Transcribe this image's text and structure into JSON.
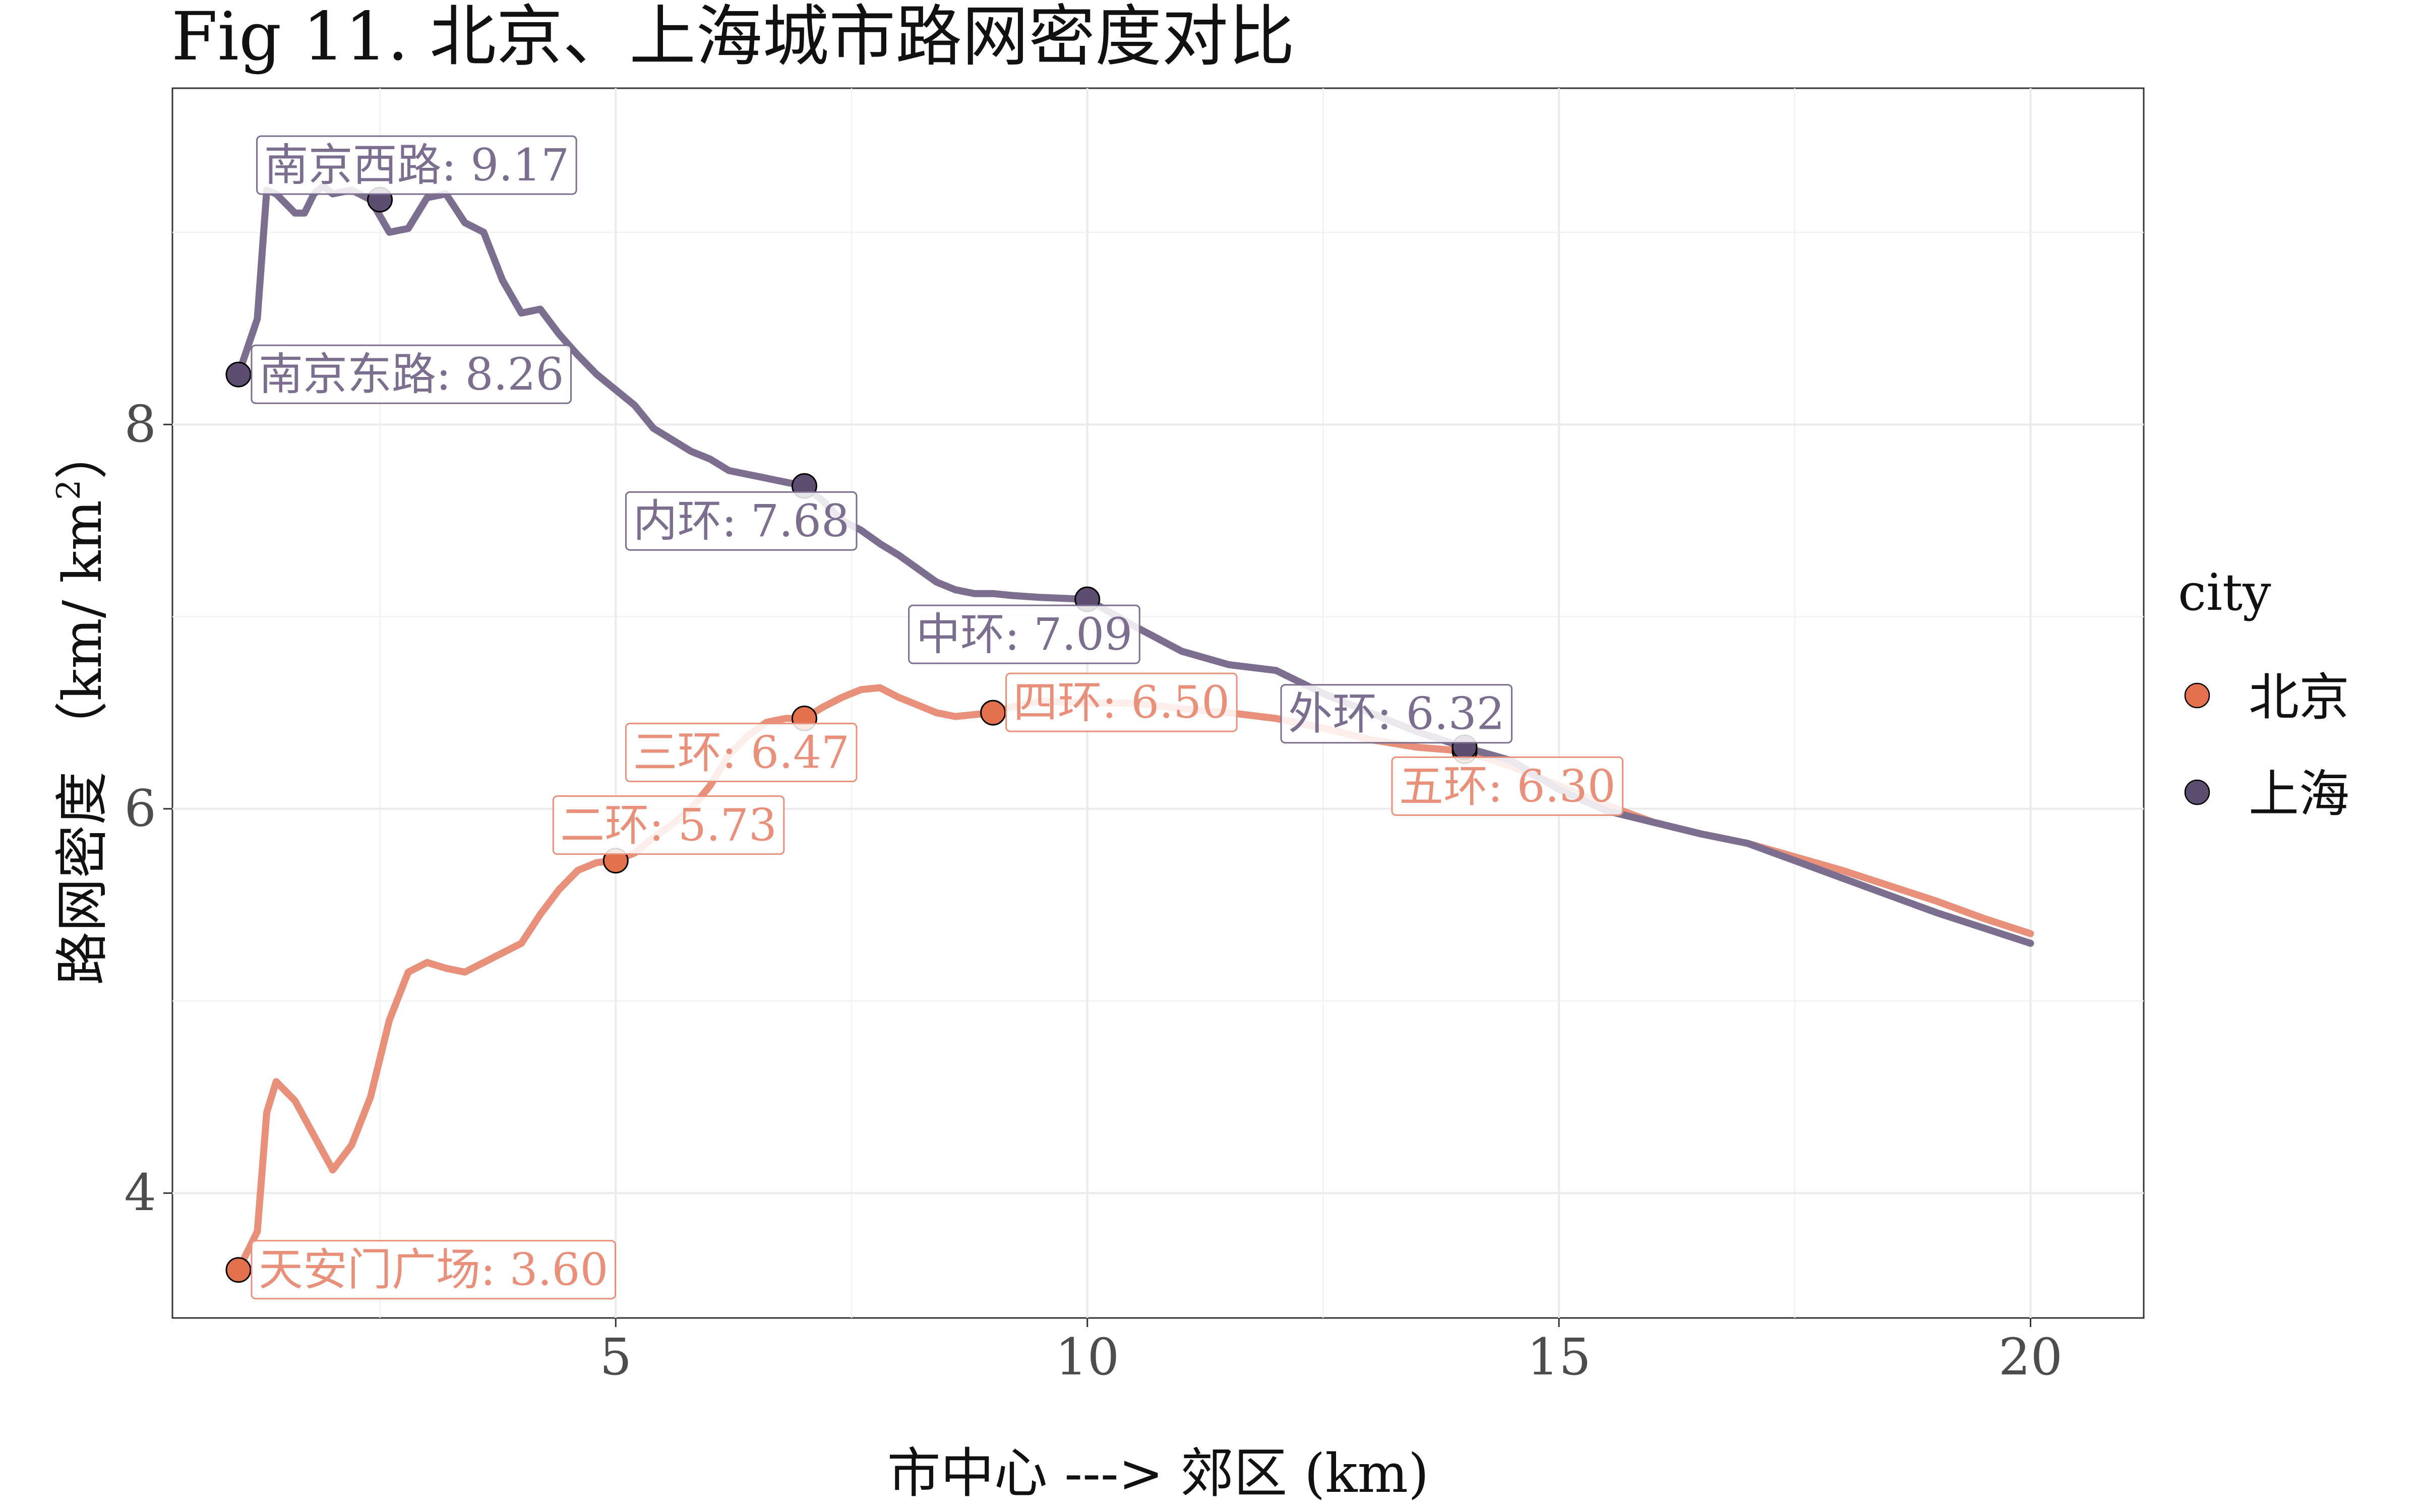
{
  "chart_data": {
    "type": "line",
    "title": "Fig 11. 北京、上海城市路网密度对比",
    "xlabel": "市中心 ---> 郊区 (km)",
    "ylabel": "路网密度 （km/ km",
    "ylabel_superscript": "2",
    "ylabel_close": "）",
    "xlim": [
      0.3,
      21.2
    ],
    "ylim": [
      3.35,
      9.75
    ],
    "x_ticks": [
      5,
      10,
      15,
      20
    ],
    "x_tick_labels": [
      "5",
      "10",
      "15",
      "20"
    ],
    "y_ticks": [
      4,
      6,
      8
    ],
    "y_tick_labels": [
      "4",
      "6",
      "8"
    ],
    "grid": true,
    "legend": {
      "title": "city",
      "position": "right",
      "entries": [
        {
          "label": "北京",
          "color": "#e3714d"
        },
        {
          "label": "上海",
          "color": "#5d4d70"
        }
      ]
    },
    "series": [
      {
        "name": "北京",
        "line_color": "#e8907a",
        "point_color": "#e3714d",
        "x": [
          1.0,
          1.2,
          1.3,
          1.4,
          1.6,
          1.8,
          2.0,
          2.2,
          2.4,
          2.6,
          2.8,
          3.0,
          3.2,
          3.4,
          3.6,
          3.8,
          4.0,
          4.2,
          4.4,
          4.6,
          4.8,
          5.0,
          5.2,
          5.4,
          5.6,
          5.8,
          6.0,
          6.2,
          6.4,
          6.6,
          6.8,
          7.0,
          7.2,
          7.4,
          7.6,
          7.8,
          8.0,
          8.2,
          8.4,
          8.6,
          8.8,
          9.0,
          9.2,
          9.5,
          10.0,
          10.5,
          11.0,
          11.5,
          12.0,
          12.5,
          13.0,
          13.5,
          14.0,
          14.5,
          15.0,
          15.5,
          16.0,
          16.5,
          17.0,
          17.5,
          18.0,
          18.5,
          19.0,
          19.5,
          20.0
        ],
        "y": [
          3.6,
          3.8,
          4.42,
          4.58,
          4.48,
          4.3,
          4.12,
          4.25,
          4.5,
          4.9,
          5.15,
          5.2,
          5.17,
          5.15,
          5.2,
          5.25,
          5.3,
          5.45,
          5.58,
          5.68,
          5.72,
          5.73,
          5.77,
          5.85,
          5.92,
          6.0,
          6.12,
          6.28,
          6.38,
          6.45,
          6.47,
          6.47,
          6.53,
          6.58,
          6.62,
          6.63,
          6.58,
          6.54,
          6.5,
          6.48,
          6.49,
          6.5,
          6.53,
          6.56,
          6.55,
          6.55,
          6.52,
          6.5,
          6.47,
          6.42,
          6.36,
          6.32,
          6.3,
          6.22,
          6.12,
          6.02,
          5.93,
          5.87,
          5.82,
          5.75,
          5.68,
          5.6,
          5.52,
          5.43,
          5.35
        ],
        "markers": [
          {
            "x": 1.0,
            "y": 3.6,
            "label": "天安门广场: 3.60"
          },
          {
            "x": 5.0,
            "y": 5.73,
            "label": "二环: 5.73"
          },
          {
            "x": 7.0,
            "y": 6.47,
            "label": "三环: 6.47"
          },
          {
            "x": 9.0,
            "y": 6.5,
            "label": "四环: 6.50"
          },
          {
            "x": 14.0,
            "y": 6.3,
            "label": "五环: 6.30"
          }
        ]
      },
      {
        "name": "上海",
        "line_color": "#7b6e8e",
        "point_color": "#5d4d70",
        "x": [
          1.0,
          1.2,
          1.3,
          1.4,
          1.6,
          1.7,
          1.8,
          1.9,
          2.0,
          2.2,
          2.4,
          2.6,
          2.8,
          3.0,
          3.2,
          3.4,
          3.6,
          3.8,
          4.0,
          4.2,
          4.4,
          4.6,
          4.8,
          5.0,
          5.2,
          5.4,
          5.6,
          5.8,
          6.0,
          6.2,
          6.4,
          6.6,
          6.8,
          7.0,
          7.2,
          7.4,
          7.6,
          7.8,
          8.0,
          8.2,
          8.4,
          8.6,
          8.8,
          9.0,
          9.2,
          9.5,
          10.0,
          10.5,
          11.0,
          11.5,
          12.0,
          12.5,
          13.0,
          13.5,
          14.0,
          14.5,
          15.0,
          15.5,
          16.0,
          16.5,
          17.0,
          17.5,
          18.0,
          18.5,
          19.0,
          19.5,
          20.0
        ],
        "y": [
          8.26,
          8.55,
          9.22,
          9.2,
          9.1,
          9.1,
          9.2,
          9.24,
          9.2,
          9.22,
          9.17,
          9.0,
          9.02,
          9.18,
          9.2,
          9.05,
          9.0,
          8.75,
          8.58,
          8.6,
          8.47,
          8.36,
          8.26,
          8.18,
          8.1,
          7.98,
          7.92,
          7.86,
          7.82,
          7.76,
          7.74,
          7.72,
          7.7,
          7.68,
          7.6,
          7.5,
          7.45,
          7.38,
          7.32,
          7.25,
          7.18,
          7.14,
          7.12,
          7.12,
          7.11,
          7.1,
          7.09,
          6.95,
          6.82,
          6.75,
          6.72,
          6.6,
          6.5,
          6.4,
          6.32,
          6.25,
          6.1,
          5.99,
          5.93,
          5.87,
          5.82,
          5.73,
          5.64,
          5.55,
          5.46,
          5.38,
          5.3
        ],
        "markers": [
          {
            "x": 1.0,
            "y": 8.26,
            "label": "南京东路: 8.26"
          },
          {
            "x": 2.5,
            "y": 9.17,
            "label": "南京西路: 9.17"
          },
          {
            "x": 7.0,
            "y": 7.68,
            "label": "内环: 7.68"
          },
          {
            "x": 10.0,
            "y": 7.09,
            "label": "中环: 7.09"
          },
          {
            "x": 14.0,
            "y": 6.32,
            "label": "外环: 6.32"
          }
        ]
      }
    ]
  }
}
